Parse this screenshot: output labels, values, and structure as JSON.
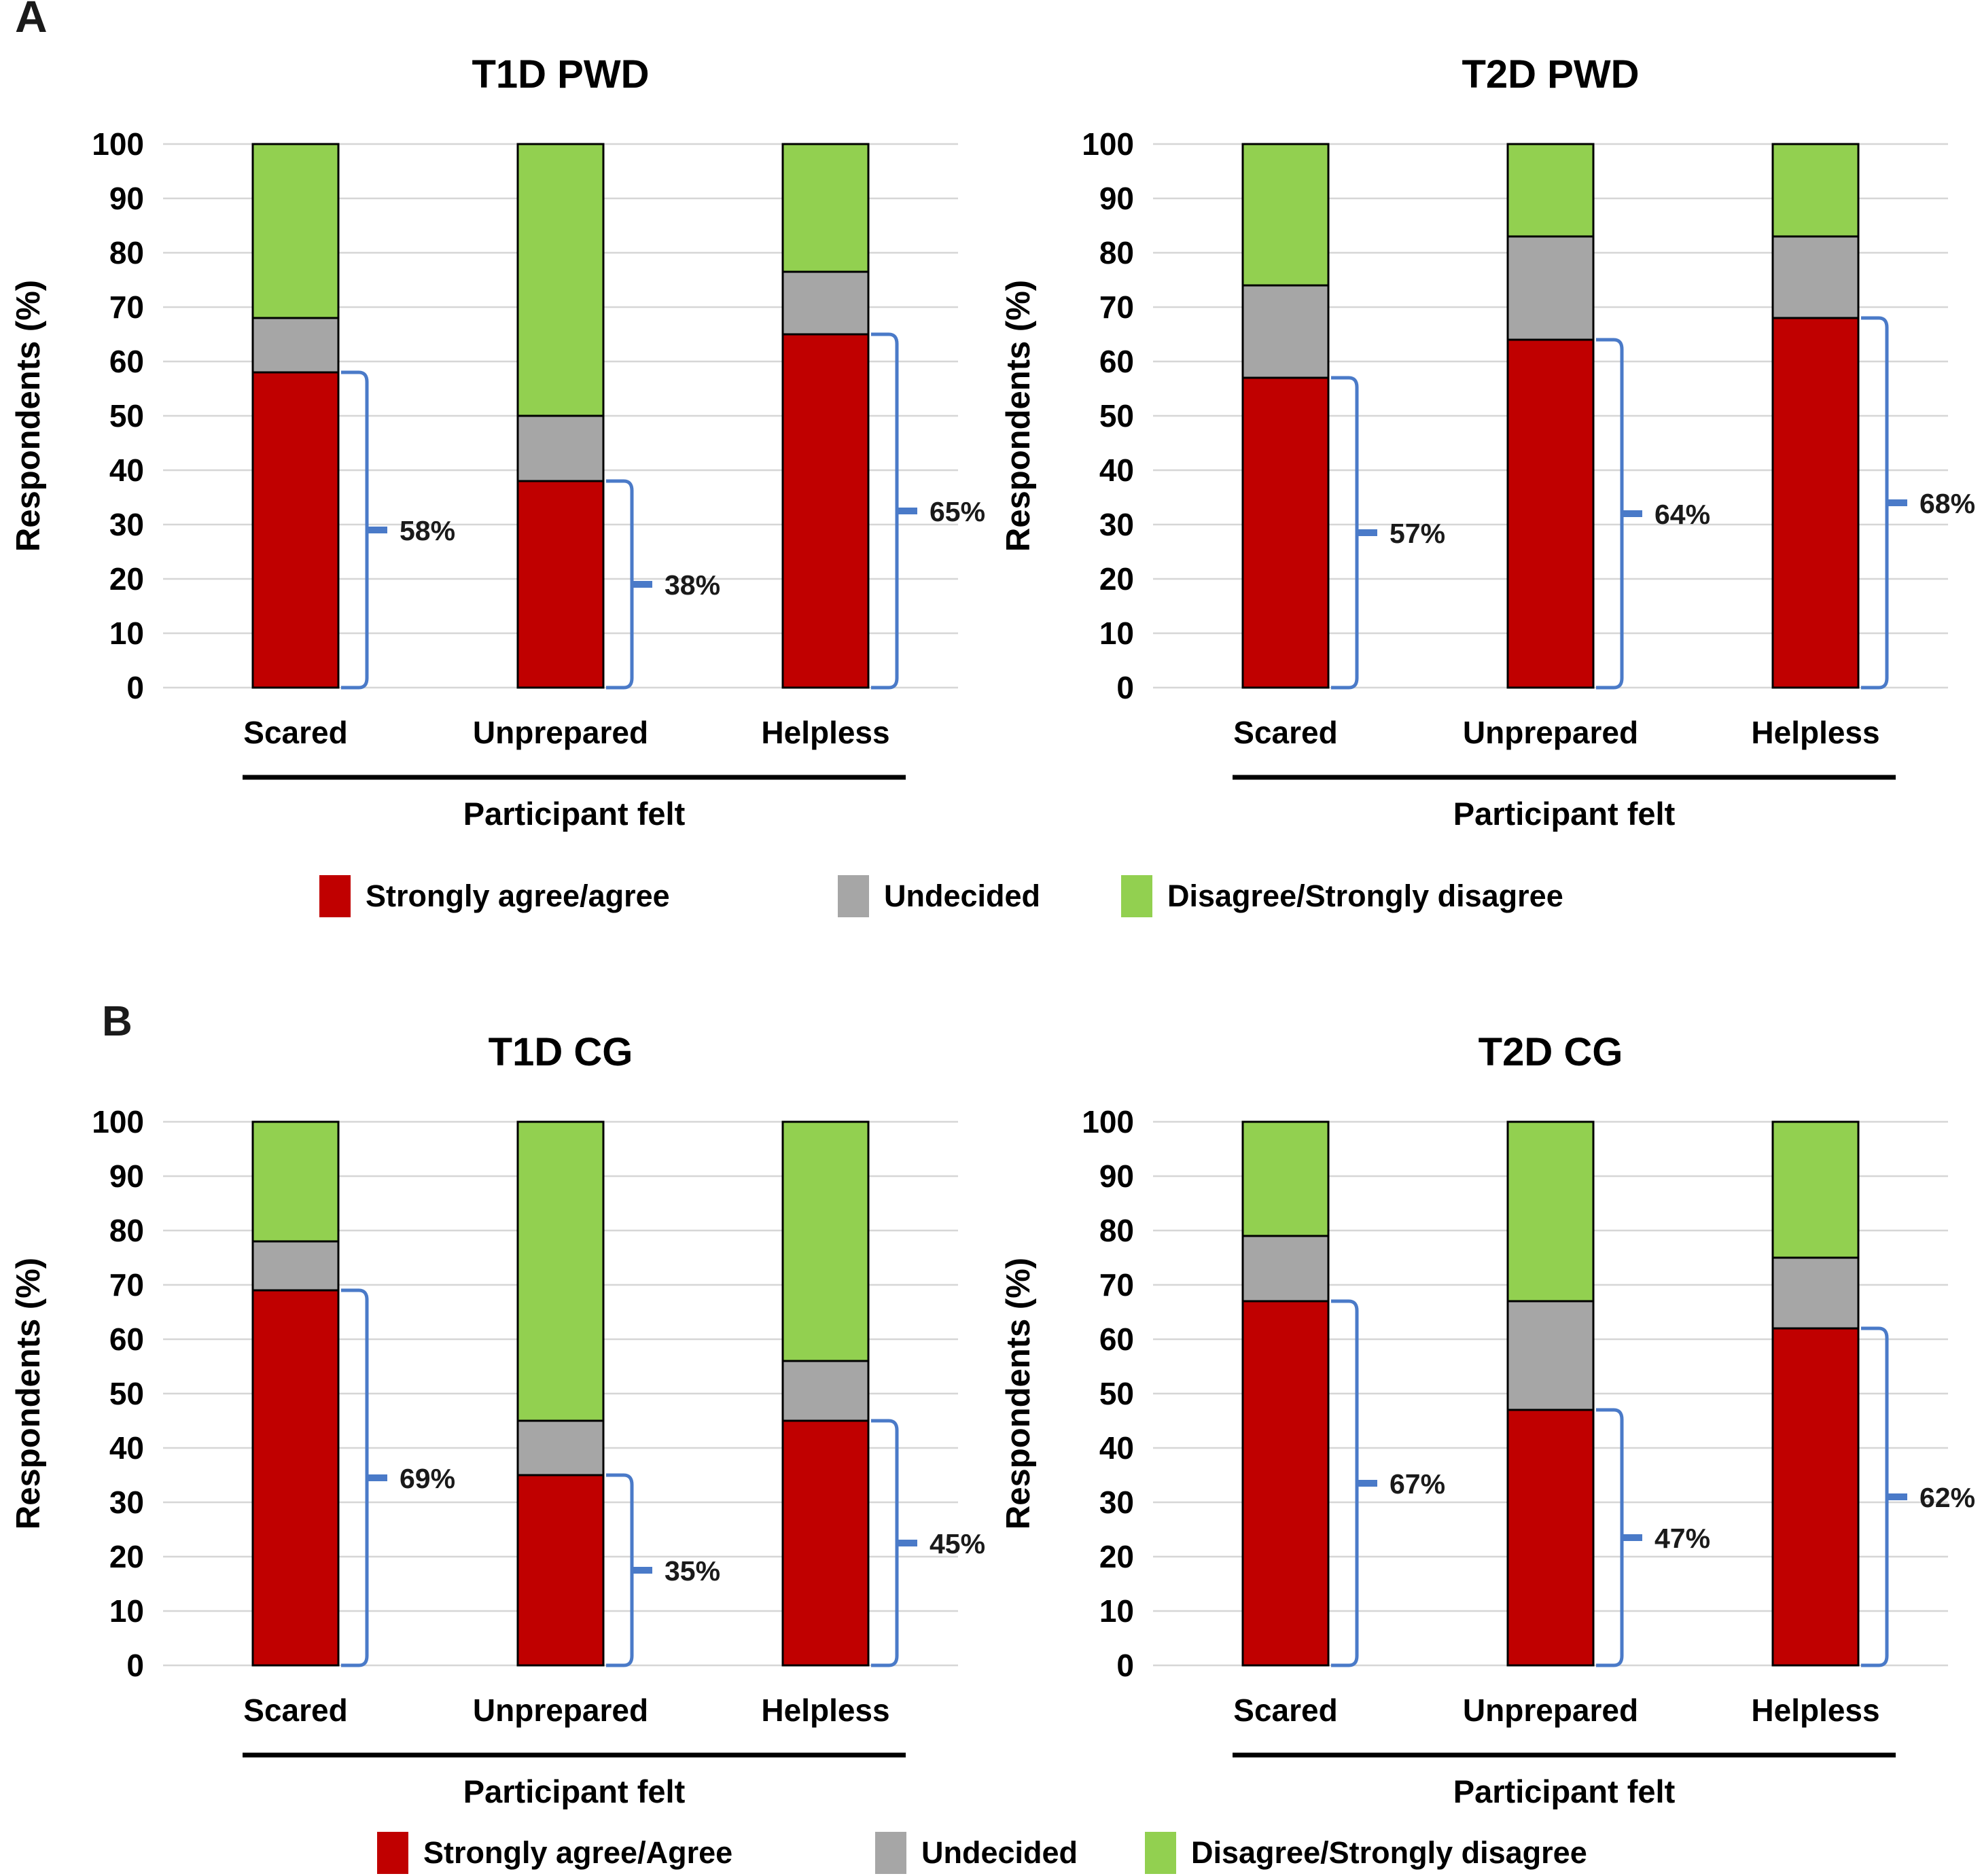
{
  "figure": {
    "panels": [
      {
        "letter": "A",
        "legend": [
          {
            "label": "Strongly agree/agree",
            "color": "#C00000"
          },
          {
            "label": "Undecided",
            "color": "#A6A6A6"
          },
          {
            "label": "Disagree/Strongly disagree",
            "color": "#92D050"
          }
        ]
      },
      {
        "letter": "B",
        "legend": [
          {
            "label": "Strongly agree/Agree",
            "color": "#C00000"
          },
          {
            "label": "Undecided",
            "color": "#A6A6A6"
          },
          {
            "label": "Disagree/Strongly disagree",
            "color": "#92D050"
          }
        ]
      }
    ]
  },
  "chart_data": [
    {
      "type": "bar",
      "stacked": true,
      "panel": "A",
      "title": "T1D PWD",
      "categories": [
        "Scared",
        "Unprepared",
        "Helpless"
      ],
      "series": [
        {
          "name": "Strongly agree/agree",
          "color": "#C00000",
          "values": [
            58,
            38,
            65
          ]
        },
        {
          "name": "Undecided",
          "color": "#A6A6A6",
          "values": [
            10,
            12,
            11.5
          ]
        },
        {
          "name": "Disagree/Strongly disagree",
          "color": "#92D050",
          "values": [
            32,
            50,
            23.5
          ]
        }
      ],
      "bracket_labels": [
        "58%",
        "38%",
        "65%"
      ],
      "xlabel": "Participant felt",
      "ylabel": "Respondents (%)",
      "ylim": [
        0,
        100
      ],
      "yticks": [
        0,
        10,
        20,
        30,
        40,
        50,
        60,
        70,
        80,
        90,
        100
      ],
      "grid": true,
      "legend_position": "below"
    },
    {
      "type": "bar",
      "stacked": true,
      "panel": "A",
      "title": "T2D PWD",
      "categories": [
        "Scared",
        "Unprepared",
        "Helpless"
      ],
      "series": [
        {
          "name": "Strongly agree/agree",
          "color": "#C00000",
          "values": [
            57,
            64,
            68
          ]
        },
        {
          "name": "Undecided",
          "color": "#A6A6A6",
          "values": [
            17,
            19,
            15
          ]
        },
        {
          "name": "Disagree/Strongly disagree",
          "color": "#92D050",
          "values": [
            26,
            17,
            17
          ]
        }
      ],
      "bracket_labels": [
        "57%",
        "64%",
        "68%"
      ],
      "xlabel": "Participant felt",
      "ylabel": "Respondents (%)",
      "ylim": [
        0,
        100
      ],
      "yticks": [
        0,
        10,
        20,
        30,
        40,
        50,
        60,
        70,
        80,
        90,
        100
      ],
      "grid": true,
      "legend_position": "below"
    },
    {
      "type": "bar",
      "stacked": true,
      "panel": "B",
      "title": "T1D CG",
      "categories": [
        "Scared",
        "Unprepared",
        "Helpless"
      ],
      "series": [
        {
          "name": "Strongly agree/Agree",
          "color": "#C00000",
          "values": [
            69,
            35,
            45
          ]
        },
        {
          "name": "Undecided",
          "color": "#A6A6A6",
          "values": [
            9,
            10,
            11
          ]
        },
        {
          "name": "Disagree/Strongly disagree",
          "color": "#92D050",
          "values": [
            22,
            55,
            44
          ]
        }
      ],
      "bracket_labels": [
        "69%",
        "35%",
        "45%"
      ],
      "xlabel": "Participant felt",
      "ylabel": "Respondents (%)",
      "ylim": [
        0,
        100
      ],
      "yticks": [
        0,
        10,
        20,
        30,
        40,
        50,
        60,
        70,
        80,
        90,
        100
      ],
      "grid": true,
      "legend_position": "below"
    },
    {
      "type": "bar",
      "stacked": true,
      "panel": "B",
      "title": "T2D CG",
      "categories": [
        "Scared",
        "Unprepared",
        "Helpless"
      ],
      "series": [
        {
          "name": "Strongly agree/Agree",
          "color": "#C00000",
          "values": [
            67,
            47,
            62
          ]
        },
        {
          "name": "Undecided",
          "color": "#A6A6A6",
          "values": [
            12,
            20,
            13
          ]
        },
        {
          "name": "Disagree/Strongly disagree",
          "color": "#92D050",
          "values": [
            21,
            33,
            25
          ]
        }
      ],
      "bracket_labels": [
        "67%",
        "47%",
        "62%"
      ],
      "xlabel": "Participant felt",
      "ylabel": "Respondents (%)",
      "ylim": [
        0,
        100
      ],
      "yticks": [
        0,
        10,
        20,
        30,
        40,
        50,
        60,
        70,
        80,
        90,
        100
      ],
      "grid": true,
      "legend_position": "below"
    }
  ],
  "style": {
    "bracket_color": "#4A7AC8",
    "gridline_color": "#D6D6D6",
    "bar_border_color": "#000000",
    "underline_color": "#000000",
    "text_color": "#000000",
    "background": "#FFFFFF"
  }
}
